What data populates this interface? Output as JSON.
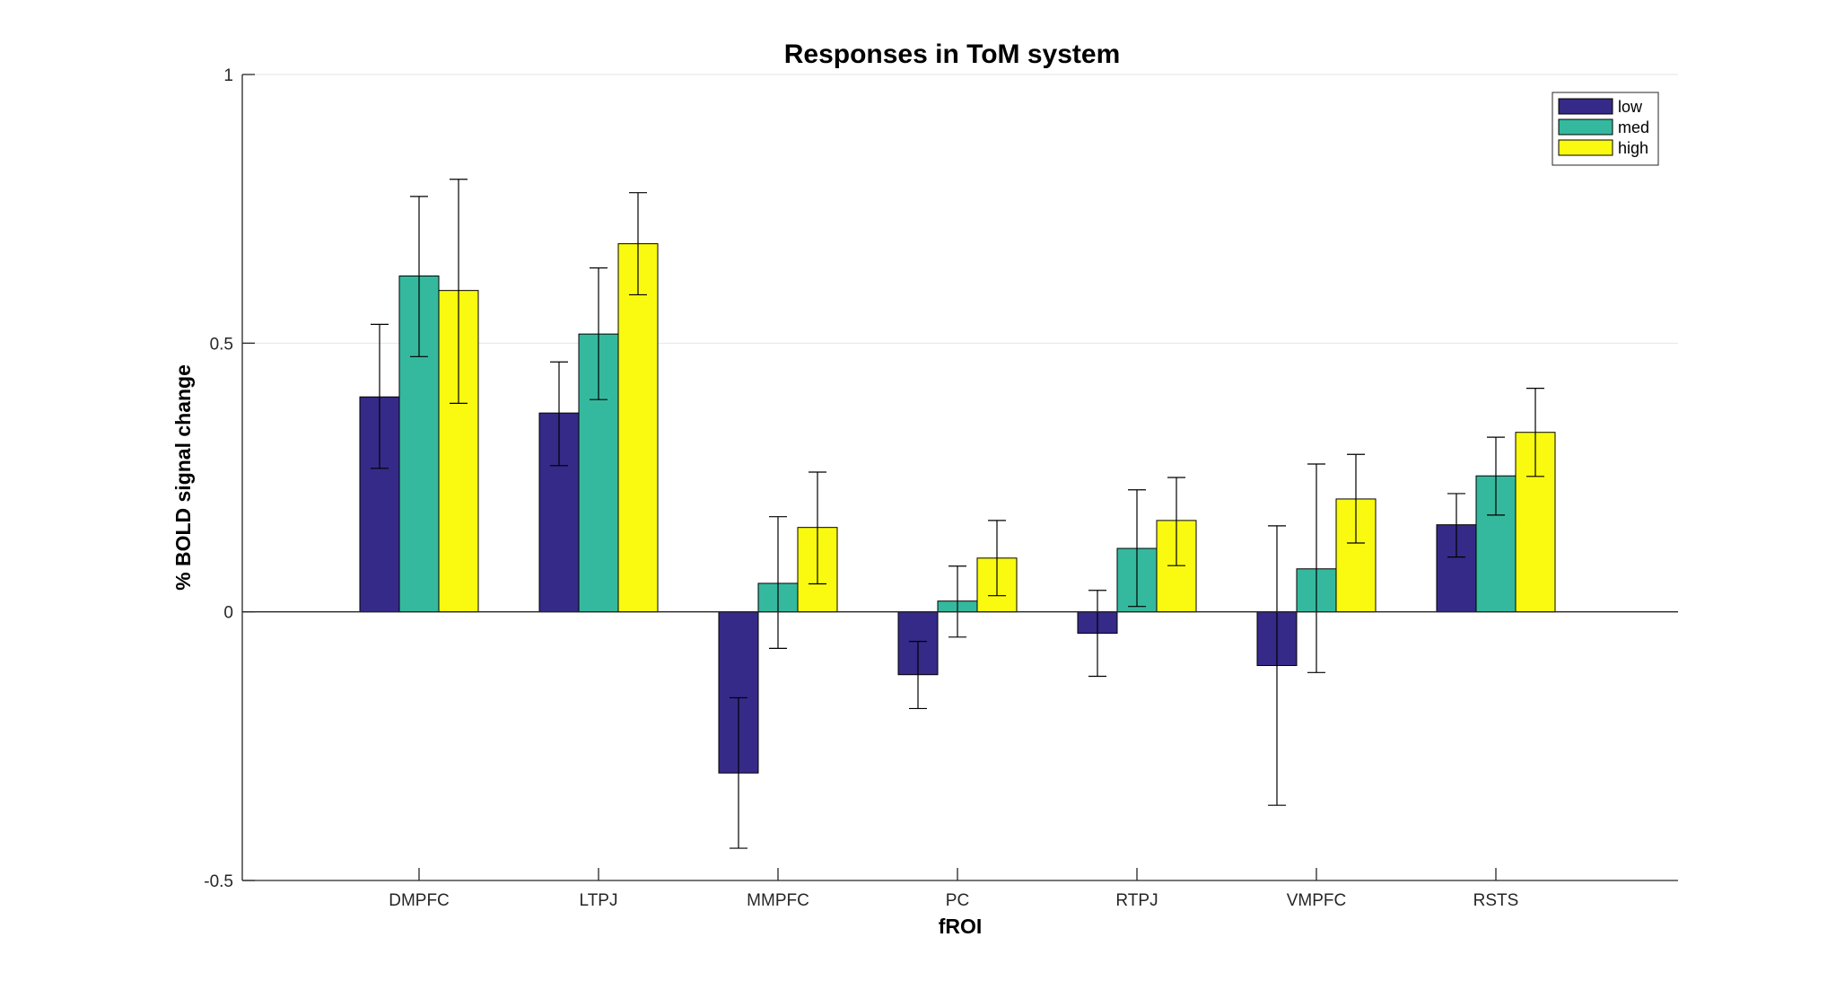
{
  "chart_data": {
    "type": "bar",
    "title": "Responses in ToM system",
    "xlabel": "fROI",
    "ylabel": "% BOLD signal change",
    "ylim": [
      -0.5,
      1
    ],
    "yticks": [
      "-0.5",
      "0",
      "0.5",
      "1"
    ],
    "ytick_values": [
      -0.5,
      0,
      0.5,
      1
    ],
    "grid": "horizontal",
    "legend_position": "top-right",
    "categories": [
      "DMPFC",
      "LTPJ",
      "MMPFC",
      "PC",
      "RTPJ",
      "VMPFC",
      "RSTS"
    ],
    "series": [
      {
        "name": "low",
        "color": "#352A87",
        "values": [
          0.4,
          0.37,
          -0.3,
          -0.117,
          -0.04,
          -0.1,
          0.162
        ],
        "error_low": [
          0.267,
          0.272,
          -0.44,
          -0.18,
          -0.12,
          -0.36,
          0.102
        ],
        "error_high": [
          0.535,
          0.465,
          -0.16,
          -0.055,
          0.04,
          0.16,
          0.22
        ]
      },
      {
        "name": "med",
        "color": "#35B99E",
        "values": [
          0.625,
          0.517,
          0.053,
          0.02,
          0.118,
          0.08,
          0.253
        ],
        "error_low": [
          0.475,
          0.395,
          -0.068,
          -0.047,
          0.01,
          -0.113,
          0.18
        ],
        "error_high": [
          0.773,
          0.64,
          0.177,
          0.085,
          0.227,
          0.275,
          0.325
        ]
      },
      {
        "name": "high",
        "color": "#F9FA0F",
        "values": [
          0.598,
          0.685,
          0.157,
          0.1,
          0.17,
          0.21,
          0.334
        ],
        "error_low": [
          0.388,
          0.59,
          0.052,
          0.03,
          0.086,
          0.128,
          0.252
        ],
        "error_high": [
          0.805,
          0.78,
          0.26,
          0.17,
          0.25,
          0.293,
          0.416
        ]
      }
    ]
  }
}
